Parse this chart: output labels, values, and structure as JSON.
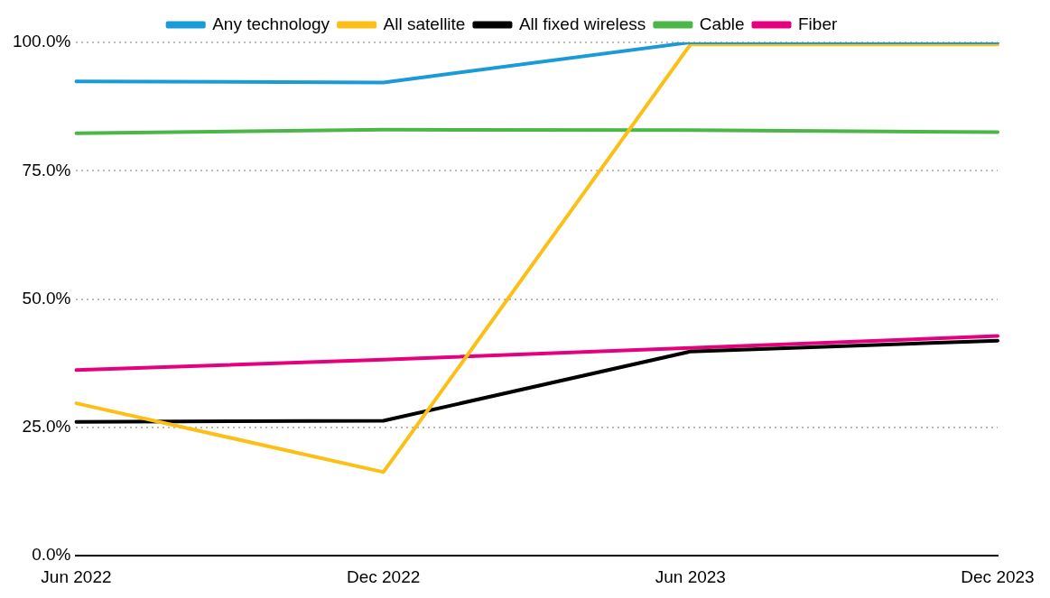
{
  "chart_data": {
    "type": "line",
    "categories": [
      "Jun 2022",
      "Dec 2022",
      "Jun 2023",
      "Dec 2023"
    ],
    "series": [
      {
        "name": "Any technology",
        "color": "#1a9bd7",
        "values": [
          92.4,
          92.2,
          100,
          100
        ]
      },
      {
        "name": "All satellite",
        "color": "#fbbf15",
        "values": [
          29.7,
          16.3,
          99.6,
          99.6
        ]
      },
      {
        "name": "All fixed wireless",
        "color": "#000000",
        "values": [
          26.1,
          26.3,
          39.8,
          41.9
        ]
      },
      {
        "name": "Cable",
        "color": "#4cb748",
        "values": [
          82.3,
          83.0,
          82.9,
          82.5
        ]
      },
      {
        "name": "Fiber",
        "color": "#e5007e",
        "values": [
          36.2,
          38.2,
          40.5,
          42.8
        ]
      }
    ],
    "ylim": [
      0,
      100
    ],
    "yticks": [
      {
        "value": 0,
        "label": "0.0%"
      },
      {
        "value": 25,
        "label": "25.0%"
      },
      {
        "value": 50,
        "label": "50.0%"
      },
      {
        "value": 75,
        "label": "75.0%"
      },
      {
        "value": 100,
        "label": "100.0%"
      }
    ],
    "grid": "y",
    "legend": "top",
    "marker": "none",
    "line_style": "solid"
  }
}
